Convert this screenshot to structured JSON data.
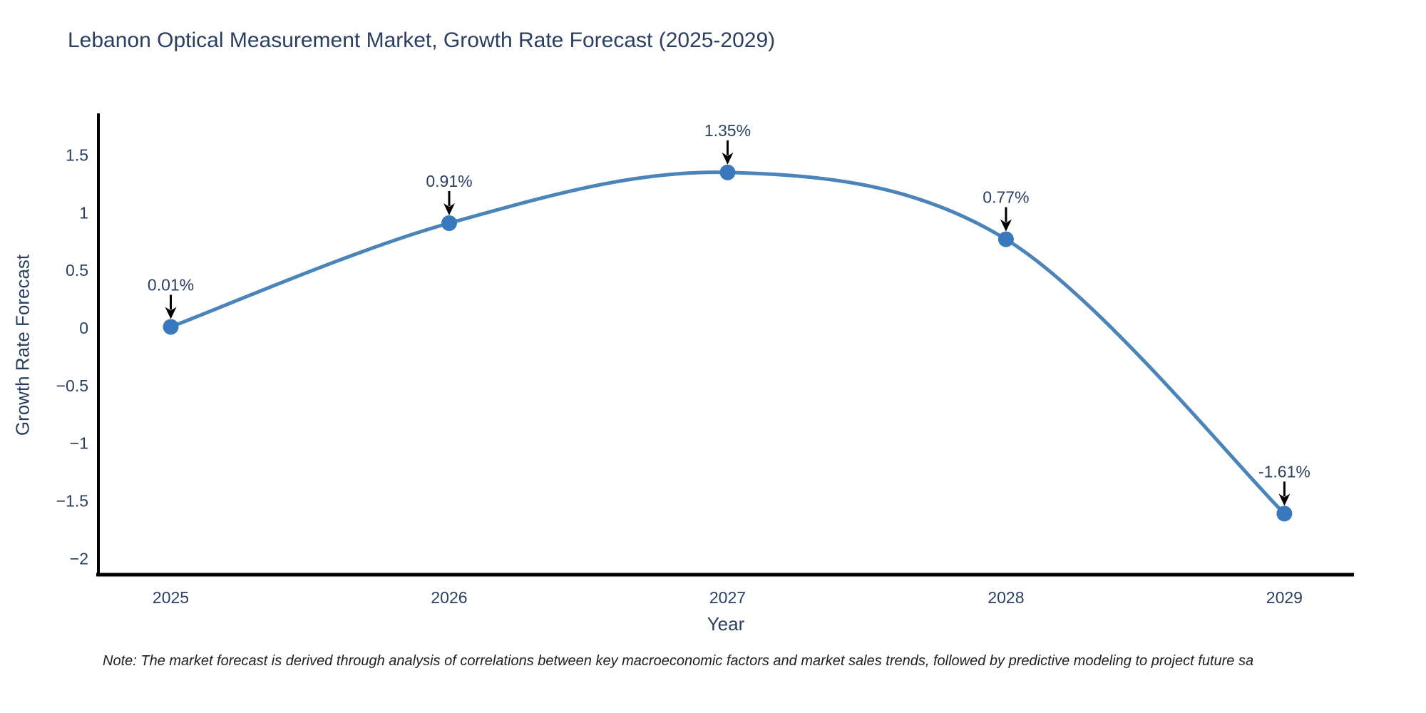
{
  "title": "Lebanon Optical Measurement Market, Growth Rate Forecast (2025-2029)",
  "note": "Note: The market forecast is derived through analysis of correlations between key macroeconomic factors and market sales trends, followed by predictive modeling to project future sa",
  "chart_data": {
    "type": "line",
    "title": "Lebanon Optical Measurement Market, Growth Rate Forecast (2025-2029)",
    "xlabel": "Year",
    "ylabel": "Growth Rate Forecast",
    "x": [
      2025,
      2026,
      2027,
      2028,
      2029
    ],
    "values": [
      0.01,
      0.91,
      1.35,
      0.77,
      -1.61
    ],
    "point_labels": [
      "0.01%",
      "0.91%",
      "1.35%",
      "0.77%",
      "-1.61%"
    ],
    "xtick_labels": [
      "2025",
      "2026",
      "2027",
      "2028",
      "2029"
    ],
    "yticks": [
      1.5,
      1,
      0.5,
      0,
      -0.5,
      -1,
      -1.5,
      -2
    ],
    "ytick_labels": [
      "1.5",
      "1",
      "0.5",
      "0",
      "−0.5",
      "−1",
      "−1.5",
      "−2"
    ],
    "xlim": [
      2024.74,
      2029.25
    ],
    "ylim": [
      -2.14,
      1.85
    ],
    "grid": false,
    "legend": "none",
    "line_shape": "spline",
    "line_color": "#4a84b8",
    "marker_color": "#3879bd",
    "axis_color": "#000000",
    "text_color": "#2a3f5f",
    "arrow_color": "#000000",
    "background_color": "#ffffff"
  }
}
